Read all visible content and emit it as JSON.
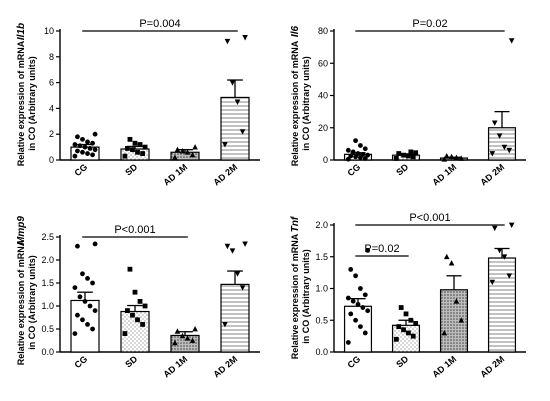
{
  "chart_data": [
    {
      "type": "bar",
      "gene": "Il1b",
      "ylabel_line1": "Relative expression of mRNA",
      "ylabel_line2": "in CO (Arbitrary units)",
      "categories": [
        "CG",
        "SD",
        "AD 1M",
        "AD 2M"
      ],
      "ylim": [
        0,
        10
      ],
      "yticks": [
        "0",
        "2",
        "4",
        "6",
        "8",
        "10"
      ],
      "means": [
        1.0,
        0.85,
        0.6,
        4.85
      ],
      "sem": [
        0.2,
        0.2,
        0.2,
        1.35
      ],
      "points": [
        [
          0.3,
          0.4,
          0.5,
          0.6,
          0.7,
          0.8,
          0.9,
          1.0,
          1.1,
          1.2,
          1.3,
          1.4,
          1.6,
          1.8,
          2.0
        ],
        [
          0.3,
          0.5,
          0.6,
          0.8,
          0.9,
          1.0,
          1.2,
          1.3,
          1.6
        ],
        [
          0.2,
          0.4,
          0.6,
          0.7,
          0.8,
          1.0
        ],
        [
          1.2,
          2.2,
          4.5,
          6.0,
          9.2,
          9.5
        ]
      ],
      "comparisons": [
        {
          "from": 0,
          "to": 3,
          "label": "P=0.004"
        }
      ]
    },
    {
      "type": "bar",
      "gene": "Il6",
      "ylabel_line1": "Relative expression of mRNA",
      "ylabel_line2": "in CO (Arbitrary units)",
      "categories": [
        "CG",
        "SD",
        "AD 1M",
        "AD 2M"
      ],
      "ylim": [
        0,
        80
      ],
      "yticks": [
        "0",
        "20",
        "40",
        "60",
        "80"
      ],
      "means": [
        3.5,
        3.0,
        1.2,
        20.0
      ],
      "sem": [
        1.0,
        0.8,
        0.5,
        10.0
      ],
      "points": [
        [
          0.5,
          1.0,
          1.5,
          2.0,
          2.5,
          3.0,
          3.5,
          4.0,
          5.0,
          6.0,
          7.0,
          9.0,
          12.0
        ],
        [
          1.0,
          2.0,
          2.5,
          3.0,
          4.0,
          4.5,
          5.0
        ],
        [
          0.5,
          1.0,
          1.5,
          2.0,
          2.5
        ],
        [
          4.0,
          6.0,
          8.0,
          15.0,
          23.0,
          74.0
        ]
      ],
      "comparisons": [
        {
          "from": 0,
          "to": 3,
          "label": "P=0.02"
        }
      ]
    },
    {
      "type": "bar",
      "gene": "Mmp9",
      "ylabel_line1": "Relative expression of mRNA",
      "ylabel_line2": "in CO (Arbitrary units)",
      "categories": [
        "CG",
        "SD",
        "AD 1M",
        "AD 2M"
      ],
      "ylim": [
        0,
        2.5
      ],
      "yticks": [
        "0.0",
        "0.5",
        "1.0",
        "1.5",
        "2.0",
        "2.5"
      ],
      "means": [
        1.12,
        0.88,
        0.36,
        1.47
      ],
      "sem": [
        0.18,
        0.13,
        0.08,
        0.29
      ],
      "points": [
        [
          0.4,
          0.5,
          0.6,
          0.7,
          0.8,
          0.9,
          1.0,
          1.1,
          1.2,
          1.4,
          1.5,
          1.6,
          1.7,
          2.3,
          2.35
        ],
        [
          0.4,
          0.6,
          0.7,
          0.8,
          0.9,
          1.0,
          1.1,
          1.3,
          1.8
        ],
        [
          0.2,
          0.25,
          0.3,
          0.35,
          0.45,
          0.5
        ],
        [
          0.6,
          1.4,
          1.7,
          2.2,
          2.3,
          2.35
        ]
      ],
      "comparisons": [
        {
          "from": 0,
          "to": 2,
          "label": "P<0.001"
        }
      ]
    },
    {
      "type": "bar",
      "gene": "Tnf",
      "ylabel_line1": "Relative expression of mRNA",
      "ylabel_line2": "in CO (Arbitrary units)",
      "categories": [
        "CG",
        "SD",
        "AD 1M",
        "AD 2M"
      ],
      "ylim": [
        0,
        2.0
      ],
      "yticks": [
        "0.0",
        "0.5",
        "1.0",
        "1.5",
        "2.0"
      ],
      "means": [
        0.72,
        0.42,
        0.98,
        1.48
      ],
      "sem": [
        0.12,
        0.08,
        0.22,
        0.15
      ],
      "points": [
        [
          0.15,
          0.3,
          0.4,
          0.5,
          0.6,
          0.65,
          0.7,
          0.75,
          0.8,
          0.85,
          0.9,
          1.0,
          1.2,
          1.3,
          1.6
        ],
        [
          0.2,
          0.25,
          0.3,
          0.35,
          0.4,
          0.45,
          0.5,
          0.6,
          0.7
        ],
        [
          0.3,
          0.5,
          0.8,
          1.4,
          1.5
        ],
        [
          1.1,
          1.2,
          1.5,
          1.6,
          1.95,
          2.0
        ]
      ],
      "comparisons": [
        {
          "from": 0,
          "to": 1,
          "label": "P=0.02"
        },
        {
          "from": 0,
          "to": 3,
          "label": "P<0.001"
        }
      ]
    }
  ]
}
